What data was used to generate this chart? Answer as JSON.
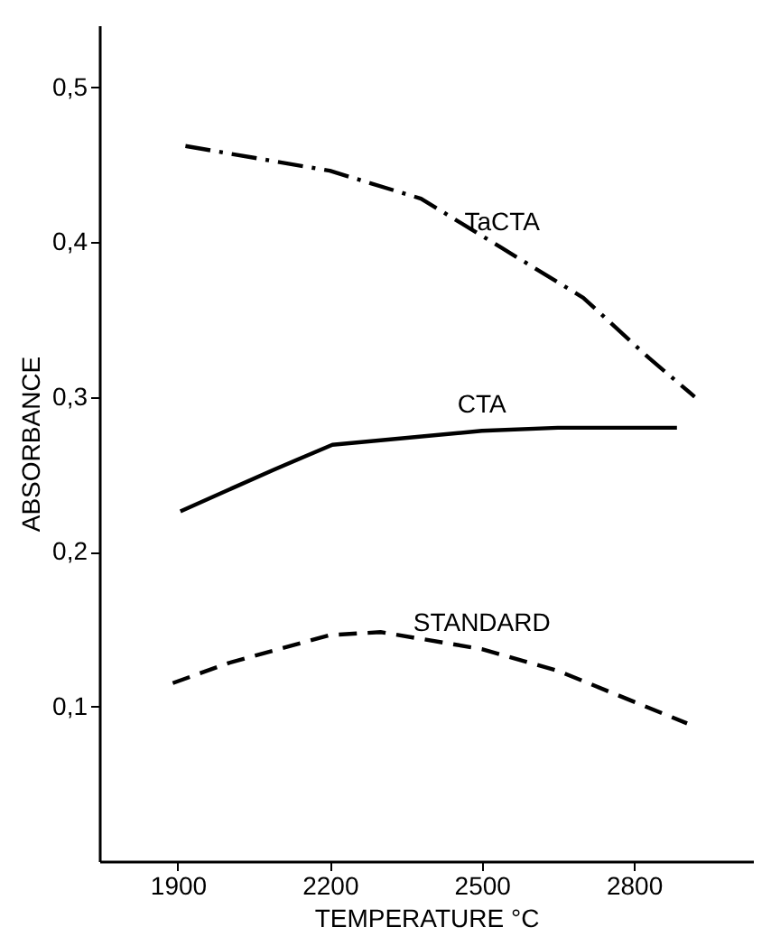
{
  "chart_data": {
    "type": "line",
    "xlabel": "TEMPERATURE  °C",
    "ylabel": "ABSORBANCE",
    "xlim": [
      1745,
      3035
    ],
    "ylim": [
      0,
      0.54
    ],
    "xticks": [
      1900,
      2200,
      2500,
      2800
    ],
    "yticks": [
      {
        "value": 0.1,
        "label": "0,1"
      },
      {
        "value": 0.2,
        "label": "0,2"
      },
      {
        "value": 0.3,
        "label": "0,3"
      },
      {
        "value": 0.4,
        "label": "0,4"
      },
      {
        "value": 0.5,
        "label": "0,5"
      }
    ],
    "grid": false,
    "marker": "none",
    "series": [
      {
        "name": "TaCTA",
        "color": "#000000",
        "line_style": "dashdot",
        "x": [
          1915,
          2200,
          2380,
          2540,
          2700,
          2830,
          2920
        ],
        "values": [
          0.462,
          0.446,
          0.428,
          0.396,
          0.364,
          0.325,
          0.3
        ]
      },
      {
        "name": "CTA",
        "color": "#000000",
        "line_style": "solid",
        "x": [
          1905,
          2090,
          2205,
          2500,
          2650,
          2885
        ],
        "values": [
          0.226,
          0.253,
          0.269,
          0.278,
          0.28,
          0.28
        ]
      },
      {
        "name": "STANDARD",
        "color": "#000000",
        "line_style": "dashed",
        "x": [
          1890,
          2000,
          2200,
          2300,
          2500,
          2650,
          2800,
          2905
        ],
        "values": [
          0.115,
          0.128,
          0.146,
          0.148,
          0.137,
          0.123,
          0.103,
          0.089
        ]
      }
    ]
  }
}
